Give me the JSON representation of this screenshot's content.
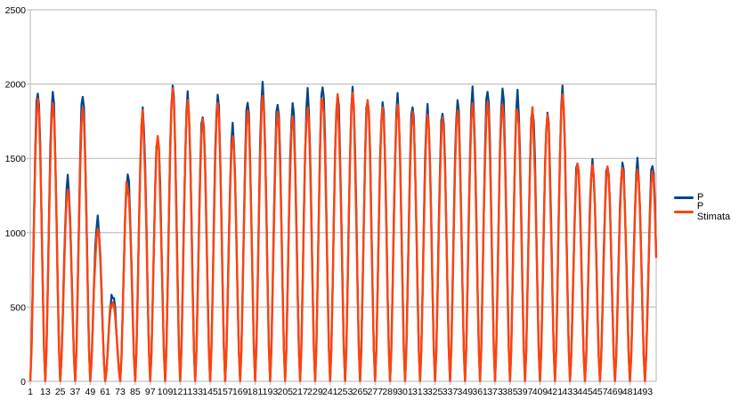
{
  "chart_data": {
    "type": "line",
    "title": "",
    "xlabel": "",
    "ylabel": "",
    "ylim": [
      0,
      2500
    ],
    "yticks": [
      0,
      500,
      1000,
      1500,
      2000,
      2500
    ],
    "xlim": [
      1,
      502
    ],
    "xticks": [
      1,
      13,
      25,
      37,
      49,
      61,
      73,
      85,
      97,
      109,
      121,
      133,
      145,
      157,
      169,
      181,
      193,
      205,
      217,
      229,
      241,
      253,
      265,
      277,
      289,
      301,
      313,
      325,
      337,
      349,
      361,
      373,
      385,
      397,
      409,
      421,
      433,
      445,
      457,
      469,
      481,
      493
    ],
    "grid": true,
    "legend_position": "right",
    "period": 12,
    "peaks": [
      1960,
      1940,
      1350,
      1930,
      1100,
      600,
      1400,
      1820,
      1650,
      1990,
      1920,
      1800,
      1920,
      1700,
      1890,
      2000,
      1900,
      1880,
      1950,
      2010,
      1930,
      1950,
      1910,
      1870,
      1900,
      1860,
      1850,
      1840,
      1900,
      1960,
      1980,
      1970,
      1930,
      1840,
      1800,
      1950,
      1480
    ],
    "series": [
      {
        "name": "P",
        "color": "#004586"
      },
      {
        "name": "P Stimata",
        "color": "#ff420e"
      }
    ]
  }
}
